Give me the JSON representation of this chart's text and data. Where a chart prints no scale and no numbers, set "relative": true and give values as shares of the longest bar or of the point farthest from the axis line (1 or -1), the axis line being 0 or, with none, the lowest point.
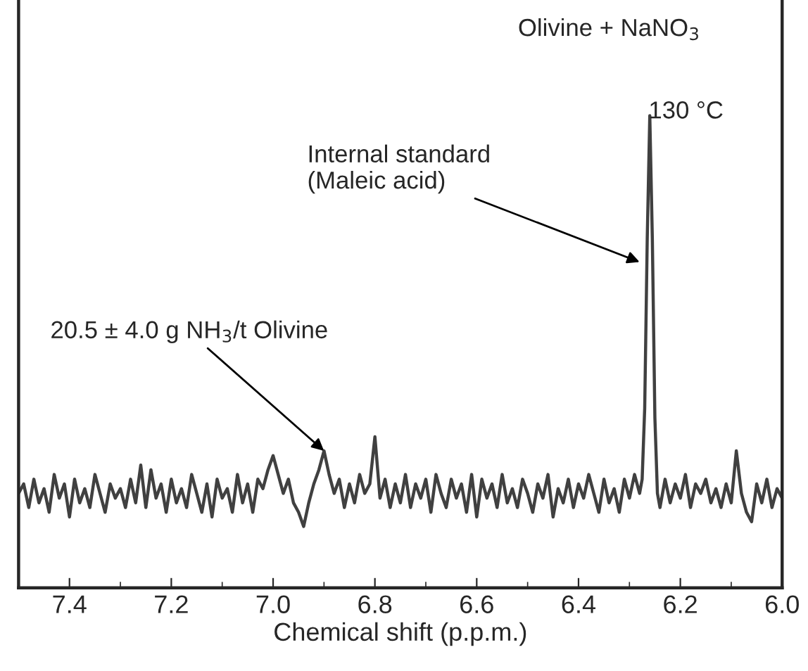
{
  "chart_data": {
    "type": "line",
    "relative": true,
    "xlabel": "Chemical shift (p.p.m.)",
    "xlim": [
      7.5,
      6.0
    ],
    "xticks": [
      7.4,
      7.2,
      {
        "value": 7.0,
        "label": "7.0"
      },
      6.8,
      6.6,
      6.4,
      6.2,
      {
        "value": 6.0,
        "label": "6.0"
      }
    ],
    "tick_labels": "x",
    "grid": false,
    "legend": false,
    "marker": "none",
    "line_style": "solid",
    "annotations": [
      "Olivine + NaNO$_{3}$",
      "130 °C",
      {
        "text": "Internal standard\n(Maleic acid)",
        "x": 6.28,
        "y": 0.69
      },
      {
        "text": "20.5 ± 4.0 g NH$_{3}$/t Olivine",
        "x": 6.9,
        "y": 0.29
      }
    ],
    "series": [
      {
        "color": "#404040",
        "x": [
          7.5,
          7.49,
          7.48,
          7.47,
          7.46,
          7.45,
          7.44,
          7.43,
          7.42,
          7.41,
          7.4,
          7.39,
          7.38,
          7.37,
          7.36,
          7.35,
          7.34,
          7.33,
          7.32,
          7.31,
          7.3,
          7.29,
          7.28,
          7.27,
          7.26,
          7.25,
          7.24,
          7.23,
          7.22,
          7.21,
          7.2,
          7.19,
          7.18,
          7.17,
          7.16,
          7.15,
          7.14,
          7.13,
          7.12,
          7.11,
          7.1,
          7.09,
          7.08,
          7.07,
          7.06,
          7.05,
          7.04,
          7.03,
          7.02,
          7.01,
          7.0,
          6.99,
          6.98,
          6.97,
          6.96,
          6.95,
          6.94,
          6.93,
          6.92,
          6.91,
          6.9,
          6.89,
          6.88,
          6.87,
          6.86,
          6.85,
          6.84,
          6.83,
          6.82,
          6.81,
          6.8,
          6.79,
          6.78,
          6.77,
          6.76,
          6.75,
          6.74,
          6.73,
          6.72,
          6.71,
          6.7,
          6.69,
          6.68,
          6.67,
          6.66,
          6.65,
          6.64,
          6.63,
          6.62,
          6.61,
          6.6,
          6.59,
          6.58,
          6.57,
          6.56,
          6.55,
          6.54,
          6.53,
          6.52,
          6.51,
          6.5,
          6.49,
          6.48,
          6.47,
          6.46,
          6.45,
          6.44,
          6.43,
          6.42,
          6.41,
          6.4,
          6.39,
          6.38,
          6.37,
          6.36,
          6.35,
          6.34,
          6.33,
          6.32,
          6.31,
          6.3,
          6.29,
          6.28,
          6.275,
          6.27,
          6.265,
          6.26,
          6.255,
          6.25,
          6.245,
          6.24,
          6.23,
          6.22,
          6.21,
          6.2,
          6.19,
          6.18,
          6.17,
          6.16,
          6.15,
          6.14,
          6.13,
          6.12,
          6.11,
          6.1,
          6.09,
          6.08,
          6.07,
          6.06,
          6.05,
          6.04,
          6.03,
          6.02,
          6.01,
          6.0
        ],
        "values": [
          0.2,
          0.22,
          0.17,
          0.23,
          0.18,
          0.21,
          0.16,
          0.24,
          0.19,
          0.22,
          0.15,
          0.23,
          0.18,
          0.21,
          0.17,
          0.24,
          0.2,
          0.16,
          0.22,
          0.19,
          0.21,
          0.17,
          0.23,
          0.18,
          0.26,
          0.17,
          0.25,
          0.19,
          0.22,
          0.16,
          0.23,
          0.18,
          0.21,
          0.17,
          0.24,
          0.2,
          0.16,
          0.22,
          0.15,
          0.23,
          0.19,
          0.21,
          0.16,
          0.24,
          0.18,
          0.22,
          0.16,
          0.23,
          0.21,
          0.25,
          0.28,
          0.24,
          0.2,
          0.23,
          0.18,
          0.16,
          0.13,
          0.18,
          0.22,
          0.25,
          0.29,
          0.24,
          0.2,
          0.23,
          0.17,
          0.22,
          0.18,
          0.24,
          0.2,
          0.22,
          0.32,
          0.19,
          0.23,
          0.17,
          0.22,
          0.18,
          0.24,
          0.17,
          0.22,
          0.19,
          0.23,
          0.16,
          0.24,
          0.2,
          0.17,
          0.23,
          0.19,
          0.22,
          0.16,
          0.24,
          0.15,
          0.23,
          0.19,
          0.22,
          0.17,
          0.24,
          0.18,
          0.21,
          0.17,
          0.23,
          0.2,
          0.16,
          0.22,
          0.19,
          0.24,
          0.15,
          0.21,
          0.18,
          0.23,
          0.17,
          0.22,
          0.19,
          0.24,
          0.2,
          0.16,
          0.23,
          0.18,
          0.21,
          0.16,
          0.23,
          0.19,
          0.24,
          0.2,
          0.23,
          0.38,
          0.74,
          1.0,
          0.74,
          0.36,
          0.2,
          0.17,
          0.23,
          0.18,
          0.22,
          0.19,
          0.24,
          0.17,
          0.22,
          0.2,
          0.23,
          0.18,
          0.21,
          0.17,
          0.22,
          0.18,
          0.29,
          0.2,
          0.16,
          0.14,
          0.22,
          0.18,
          0.23,
          0.17,
          0.21,
          0.19
        ]
      }
    ]
  }
}
